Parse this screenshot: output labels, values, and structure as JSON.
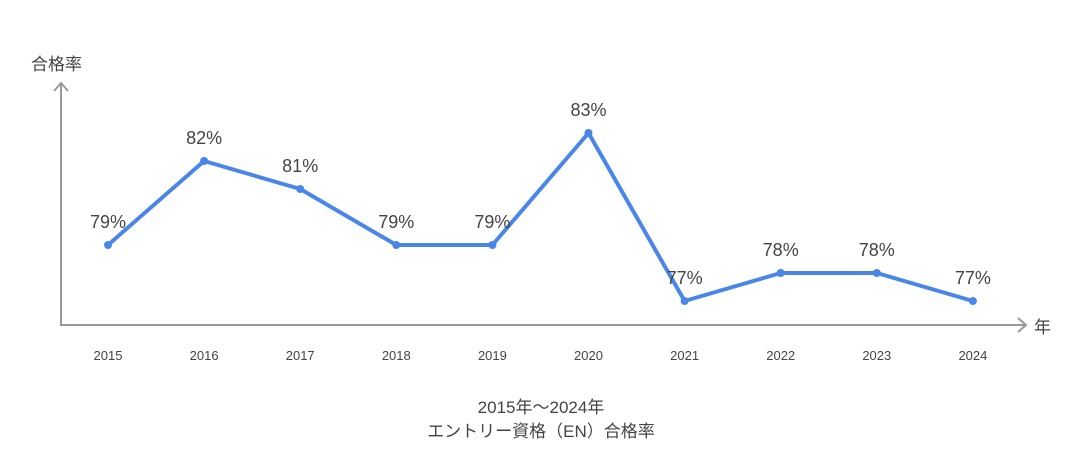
{
  "chart_data": {
    "type": "line",
    "title": "2015年〜2024年\nエントリー資格（EN）合格率",
    "title_lines": [
      "2015年〜2024年",
      "エントリー資格（EN）合格率"
    ],
    "xlabel": "年",
    "ylabel": "合格率",
    "categories": [
      "2015",
      "2016",
      "2017",
      "2018",
      "2019",
      "2020",
      "2021",
      "2022",
      "2023",
      "2024"
    ],
    "series": [
      {
        "name": "合格率",
        "color": "#4A86E8",
        "values": [
          79,
          82,
          81,
          79,
          79,
          83,
          77,
          78,
          78,
          77
        ],
        "labels": [
          "79%",
          "82%",
          "81%",
          "79%",
          "79%",
          "83%",
          "77%",
          "78%",
          "78%",
          "77%"
        ]
      }
    ],
    "grid": false,
    "legend": "none",
    "axis_color": "#999999",
    "text_color": "#444444"
  }
}
